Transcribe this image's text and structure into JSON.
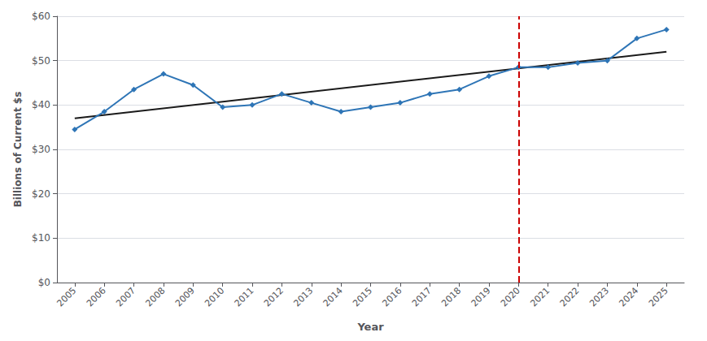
{
  "chart_data": {
    "type": "line",
    "x": [
      2005,
      2006,
      2007,
      2008,
      2009,
      2010,
      2011,
      2012,
      2013,
      2014,
      2015,
      2016,
      2017,
      2018,
      2019,
      2020,
      2021,
      2022,
      2023,
      2024,
      2025
    ],
    "series": [
      {
        "type": "line",
        "x": [
          2005,
          2025
        ],
        "values": [
          37.0,
          52.0
        ],
        "color": "#1a1a1a",
        "marker": "none"
      },
      {
        "type": "line",
        "values": [
          34.5,
          38.5,
          43.5,
          47.0,
          44.5,
          39.5,
          40.0,
          42.5,
          40.5,
          38.5,
          39.5,
          40.5,
          42.5,
          43.5,
          46.5,
          48.5,
          48.5,
          49.5,
          50.0,
          55.0,
          57.0
        ],
        "color": "#2E75B6",
        "marker": "diamond"
      }
    ],
    "annotations": [
      {
        "type": "vline",
        "x": 2020,
        "color": "#cc0000",
        "line_style": "dashed"
      }
    ],
    "xlabel": "Year",
    "ylabel": "Billions of Current $s",
    "xlim": [
      2004.4,
      2025.6
    ],
    "xticks": [
      2005,
      2006,
      2007,
      2008,
      2009,
      2010,
      2011,
      2012,
      2013,
      2014,
      2015,
      2016,
      2017,
      2018,
      2019,
      2020,
      2021,
      2022,
      2023,
      2024,
      2025
    ],
    "ylim": [
      0,
      60
    ],
    "yticks": [
      {
        "value": 0,
        "label": "$0"
      },
      {
        "value": 10,
        "label": "$10"
      },
      {
        "value": 20,
        "label": "$20"
      },
      {
        "value": 30,
        "label": "$30"
      },
      {
        "value": 40,
        "label": "$40"
      },
      {
        "value": 50,
        "label": "$50"
      },
      {
        "value": 60,
        "label": "$60"
      }
    ],
    "grid": true
  }
}
